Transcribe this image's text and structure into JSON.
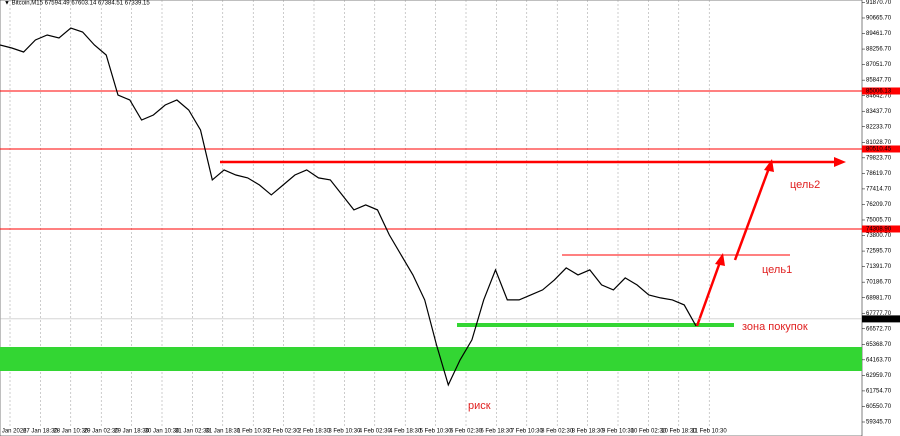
{
  "chart_data": {
    "type": "line",
    "title": "▼ Bitcoin,M15  67594.49 67603.14 67384.51 67339.15",
    "values": [
      88572,
      88340,
      88030,
      88960,
      89348,
      89115,
      89890,
      89580,
      88572,
      87797,
      84697,
      84310,
      82760,
      83147,
      83922,
      84310,
      83535,
      81985,
      78110,
      78885,
      78497,
      78265,
      77722,
      76947,
      77722,
      78497,
      78885,
      78265,
      78110,
      76947,
      75785,
      76172,
      75785,
      73847,
      72297,
      70747,
      68810,
      65322,
      62222,
      64160,
      65710,
      68810,
      71135,
      68810,
      68810,
      69197,
      69585,
      70360,
      71290,
      70747,
      71135,
      69972,
      69585,
      70515,
      69972,
      69197,
      68965,
      68810,
      68422,
      66795
    ],
    "color": "#000000",
    "ylim": [
      58260,
      92060
    ],
    "yticks": [
      {
        "value": 59345.7,
        "label": "59345.70"
      },
      {
        "value": 60550.7,
        "label": "60550.70"
      },
      {
        "value": 61754.7,
        "label": "61754.70"
      },
      {
        "value": 62959.7,
        "label": "62959.70"
      },
      {
        "value": 64163.7,
        "label": "64163.70"
      },
      {
        "value": 65368.7,
        "label": "65368.70"
      },
      {
        "value": 66572.7,
        "label": "66572.70"
      },
      {
        "value": 67777.7,
        "label": "67777.70"
      },
      {
        "value": 68981.7,
        "label": "68981.70"
      },
      {
        "value": 70186.7,
        "label": "70186.70"
      },
      {
        "value": 71391.7,
        "label": "71391.70"
      },
      {
        "value": 72595.7,
        "label": "72595.70"
      },
      {
        "value": 73800.7,
        "label": "73800.70"
      },
      {
        "value": 75005.7,
        "label": "75005.70"
      },
      {
        "value": 76209.7,
        "label": "76209.70"
      },
      {
        "value": 77414.7,
        "label": "77414.70"
      },
      {
        "value": 78619.7,
        "label": "78619.70"
      },
      {
        "value": 79823.7,
        "label": "79823.70"
      },
      {
        "value": 81028.7,
        "label": "81028.70"
      },
      {
        "value": 82233.7,
        "label": "82233.70"
      },
      {
        "value": 83437.7,
        "label": "83437.70"
      },
      {
        "value": 84642.7,
        "label": "84642.70"
      },
      {
        "value": 85847.7,
        "label": "85847.70"
      },
      {
        "value": 87051.7,
        "label": "87051.70"
      },
      {
        "value": 88256.7,
        "label": "88256.70"
      },
      {
        "value": 89461.7,
        "label": "89461.70"
      },
      {
        "value": 90665.7,
        "label": "90665.70"
      },
      {
        "value": 91870.7,
        "label": "91870.70"
      }
    ],
    "xlabels": [
      "27 Jan 2026",
      "27 Jan 18:30",
      "28 Jan 10:30",
      "29 Jan 02:30",
      "29 Jan 18:30",
      "30 Jan 10:30",
      "31 Jan 02:30",
      "31 Jan 18:30",
      "1 Feb 10:30",
      "2 Feb 02:30",
      "2 Feb 18:30",
      "3 Feb 10:30",
      "4 Feb 02:30",
      "4 Feb 18:30",
      "5 Feb 10:30",
      "6 Feb 02:30",
      "6 Feb 18:30",
      "7 Feb 10:30",
      "8 Feb 02:30",
      "8 Feb 18:30",
      "9 Feb 10:30",
      "10 Feb 02:30",
      "10 Feb 18:30",
      "11 Feb 10:30"
    ],
    "levels": [
      {
        "value": 85006.13,
        "label": "85006.13"
      },
      {
        "value": 80510.45,
        "label": "80510.45"
      },
      {
        "value": 74308.9,
        "label": "74308.90"
      }
    ],
    "current_price": {
      "value": 67339.15,
      "label": "67339.15"
    },
    "annotations": [
      "цель2",
      "цель1",
      "зона покупок",
      "риск"
    ]
  }
}
